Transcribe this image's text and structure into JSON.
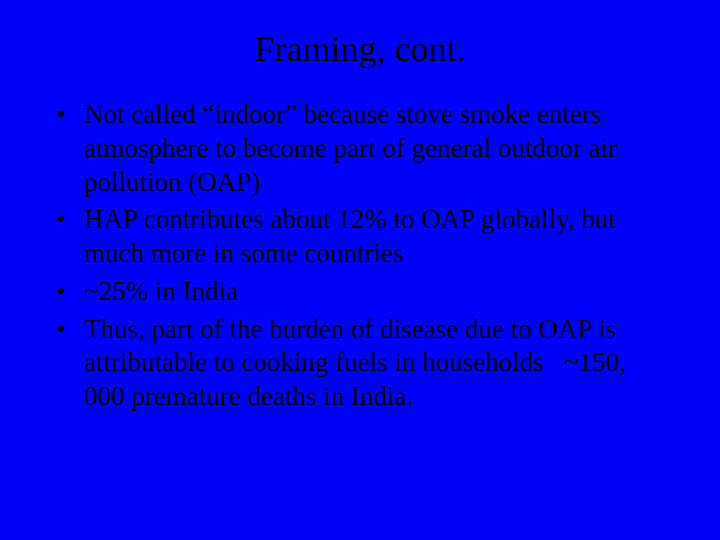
{
  "slide": {
    "background_color": "#0000ff",
    "text_color": "#000000",
    "font_family": "Times New Roman",
    "title": {
      "text": "Framing, cont.",
      "fontsize_pt": 36,
      "align": "center"
    },
    "bullets": {
      "fontsize_pt": 27,
      "marker": "•",
      "items": [
        "Not called “indoor” because stove smoke enters atmosphere to become part of general outdoor air pollution (OAP)",
        "HAP contributes about 12% to OAP globally, but much more in some countries",
        "~25% in India",
        "Thus, part of the burden of disease due to OAP is attributable to cooking fuels in households   ~150, 000 premature deaths in India."
      ]
    }
  }
}
